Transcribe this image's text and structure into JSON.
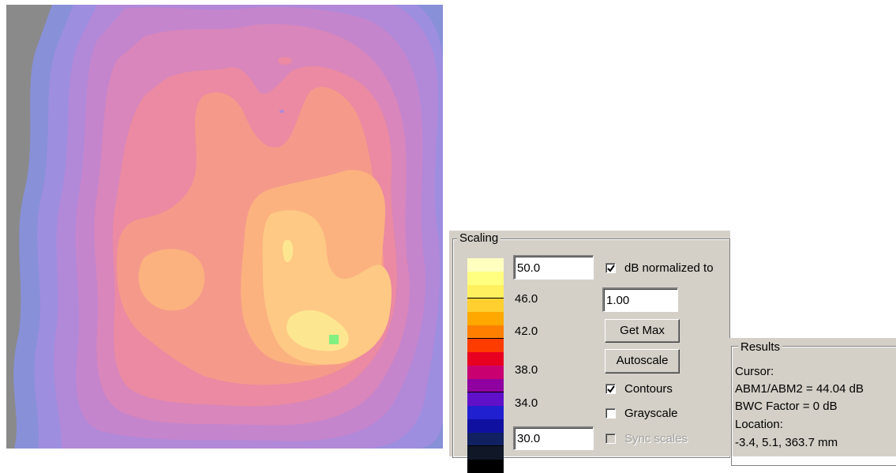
{
  "map": {
    "colors": {
      "outer_gray": "#8a8a8a",
      "l1": "#8890d8",
      "l2": "#9e8ee0",
      "l3": "#b288d8",
      "l4": "#c585cc",
      "l5": "#d886bb",
      "l6": "#eb8aa2",
      "l7": "#f59a8a",
      "l8": "#fbb27f",
      "l9": "#fdc985",
      "l10": "#fde690",
      "cursor_marker": "#80f080"
    }
  },
  "scaling": {
    "title": "Scaling",
    "max_value": "50.0",
    "min_value": "30.0",
    "normalize_value": "1.00",
    "db_normalized_label": "dB normalized to",
    "db_normalized_checked": true,
    "get_max_label": "Get Max",
    "autoscale_label": "Autoscale",
    "contours_label": "Contours",
    "contours_checked": true,
    "grayscale_label": "Grayscale",
    "grayscale_checked": false,
    "sync_scales_label": "Sync scales",
    "sync_scales_checked": false,
    "tick_labels": [
      "46.0",
      "42.0",
      "38.0",
      "34.0"
    ],
    "colorbar_colors": [
      "#ffffc0",
      "#ffff80",
      "#fff060",
      "#ffd030",
      "#ffa800",
      "#ff8000",
      "#ff3c00",
      "#e80020",
      "#c80070",
      "#9000a0",
      "#6010c8",
      "#2020d0",
      "#1010a0",
      "#102060",
      "#101828",
      "#000000"
    ]
  },
  "results": {
    "title": "Results",
    "cursor_label": "Cursor:",
    "abm_line": "ABM1/ABM2 = 44.04 dB",
    "bwc_line": "BWC Factor = 0 dB",
    "location_label": "Location:",
    "location_value": "-3.4, 5.1, 363.7 mm"
  }
}
